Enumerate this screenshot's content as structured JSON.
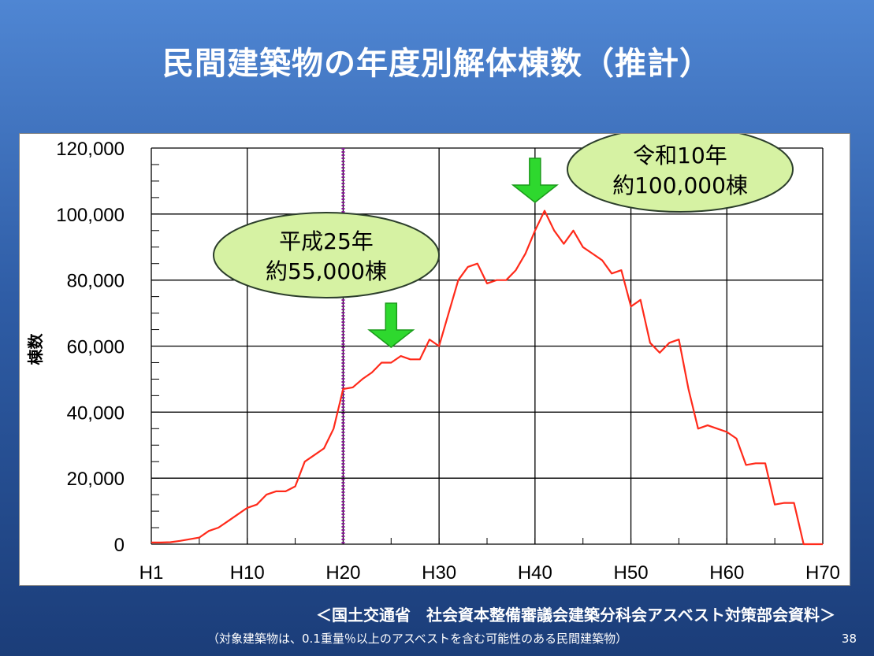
{
  "slide": {
    "title": "民間建築物の年度別解体棟数（推計）",
    "source": "＜国土交通省　社会資本整備審議会建築分科会アスベスト対策部会資料＞",
    "note": "（対象建築物は、0.1重量％以上のアスベストを含む可能性のある民間建築物）",
    "page_number": "38"
  },
  "callouts": [
    {
      "line1": "令和10年",
      "line2": "約100,000棟"
    },
    {
      "line1": "平成25年",
      "line2": "約55,000棟"
    }
  ],
  "chart_data": {
    "type": "line",
    "title": "",
    "xlabel": "",
    "ylabel": "棟数",
    "xlim": [
      1,
      71
    ],
    "ylim": [
      0,
      120000
    ],
    "grid": true,
    "x_ticks": [
      1,
      11,
      21,
      31,
      41,
      51,
      61,
      71
    ],
    "x_tick_labels": [
      "H1",
      "H10",
      "H20",
      "H30",
      "H40",
      "H50",
      "H60",
      "H70"
    ],
    "y_ticks": [
      0,
      20000,
      40000,
      60000,
      80000,
      100000,
      120000
    ],
    "y_tick_labels": [
      "0",
      "20,000",
      "40,000",
      "60,000",
      "80,000",
      "100,000",
      "120,000"
    ],
    "reference_line_x": 21,
    "reference_line_color": "#8b1a9b",
    "line_color": "#ff2a1a",
    "arrow_color": "#2ed82e",
    "callout_color": "#d6f2a3",
    "callout_targets": [
      41,
      26
    ],
    "series": [
      {
        "x": [
          1,
          2,
          3,
          4,
          5,
          6,
          7,
          8,
          9,
          10,
          11,
          12,
          13,
          14,
          15,
          16,
          17,
          18,
          19,
          20,
          21,
          22,
          23,
          24,
          25,
          26,
          27,
          28,
          29,
          30,
          31,
          32,
          33,
          34,
          35,
          36,
          37,
          38,
          39,
          40,
          41,
          42,
          43,
          44,
          45,
          46,
          47,
          48,
          49,
          50,
          51,
          52,
          53,
          54,
          55,
          56,
          57,
          58,
          59,
          60,
          61,
          62,
          63,
          64,
          65,
          66,
          67,
          68,
          69,
          70,
          71
        ],
        "values": [
          500,
          500,
          600,
          1000,
          1500,
          2000,
          4000,
          5000,
          7000,
          9000,
          11000,
          12000,
          15000,
          16000,
          16000,
          17500,
          25000,
          27000,
          29000,
          35000,
          47000,
          47500,
          50000,
          52000,
          55000,
          55000,
          57000,
          56000,
          56000,
          62000,
          60000,
          70000,
          80000,
          84000,
          85000,
          79000,
          80000,
          80000,
          83000,
          88000,
          95000,
          101000,
          95000,
          91000,
          95000,
          90000,
          88000,
          86000,
          82000,
          83000,
          72000,
          74000,
          61000,
          58000,
          61000,
          62000,
          47000,
          35000,
          36000,
          35000,
          34000,
          32000,
          24000,
          24500,
          24500,
          12000,
          12500,
          12500,
          0,
          0,
          0
        ]
      }
    ]
  }
}
